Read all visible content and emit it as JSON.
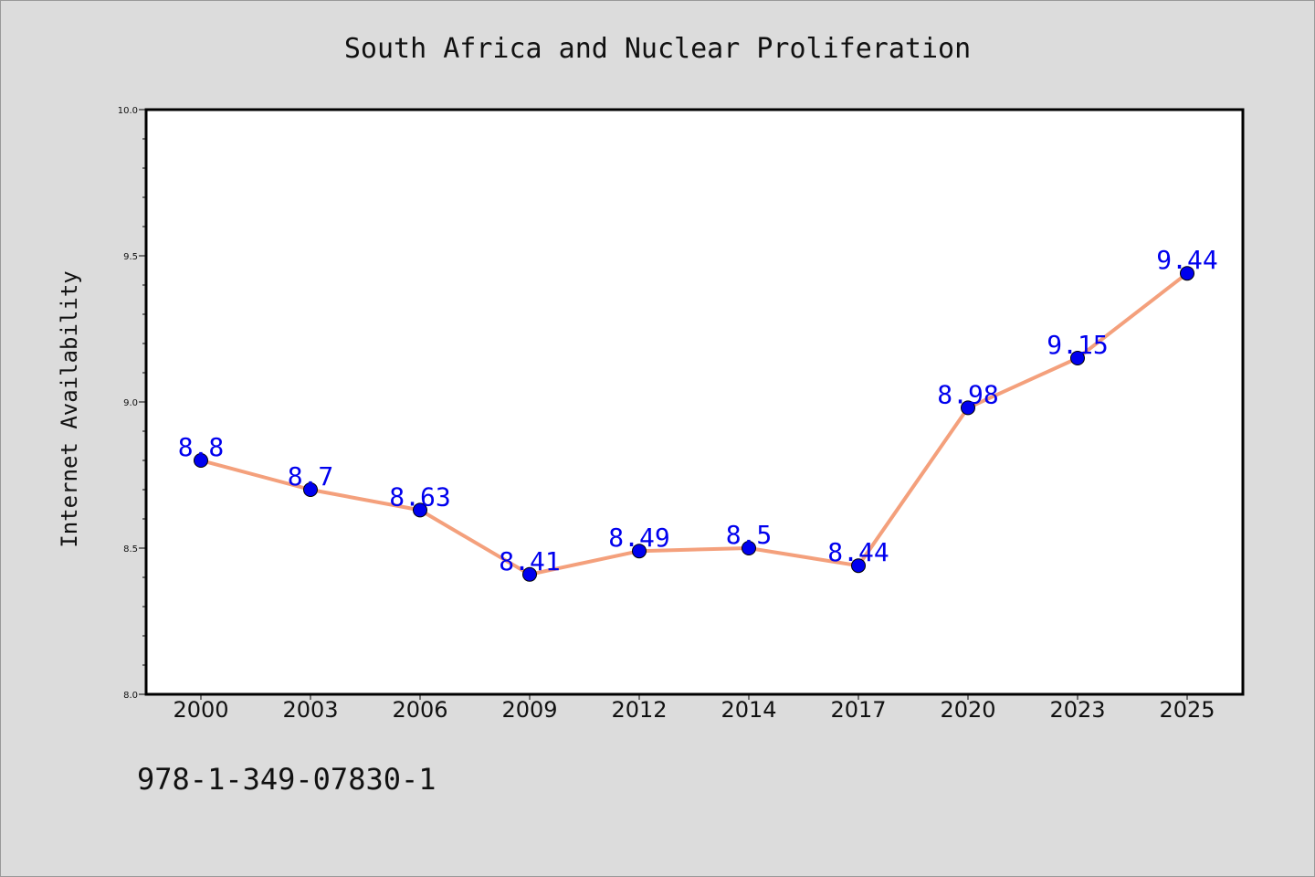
{
  "chart_data": {
    "type": "line",
    "title": "South Africa and Nuclear Proliferation",
    "xlabel": "",
    "ylabel": "Internet Availability",
    "categories": [
      "2000",
      "2003",
      "2006",
      "2009",
      "2012",
      "2014",
      "2017",
      "2020",
      "2023",
      "2025"
    ],
    "series": [
      {
        "values": [
          8.8,
          8.7,
          8.63,
          8.41,
          8.49,
          8.5,
          8.44,
          8.98,
          9.15,
          9.44
        ],
        "data_labels": [
          "8.8",
          "8.7",
          "8.63",
          "8.41",
          "8.49",
          "8.5",
          "8.44",
          "8.98",
          "9.15",
          "9.44"
        ],
        "line_color": "#f4a07c",
        "marker_color": "#0000ee",
        "label_color": "#0000ee"
      }
    ],
    "ylim": [
      8.0,
      10.0
    ],
    "yticks": [
      "8.0",
      "8.5",
      "9.0",
      "9.5",
      "10.0"
    ],
    "grid": false,
    "legend": "none"
  },
  "footnote": "978-1-349-07830-1",
  "colors": {
    "background": "#dcdcdc",
    "plot_background": "#ffffff",
    "axis": "#000000"
  }
}
